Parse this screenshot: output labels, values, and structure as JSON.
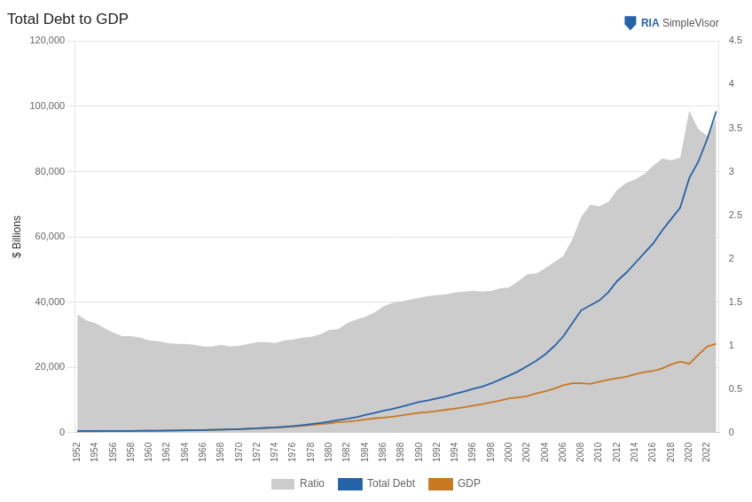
{
  "chart_data": {
    "type": "line",
    "title": "Total Debt to GDP",
    "ylabel": "$ Billions",
    "x": [
      1952,
      1953,
      1954,
      1955,
      1956,
      1957,
      1958,
      1959,
      1960,
      1961,
      1962,
      1963,
      1964,
      1965,
      1966,
      1967,
      1968,
      1969,
      1970,
      1971,
      1972,
      1973,
      1974,
      1975,
      1976,
      1977,
      1978,
      1979,
      1980,
      1981,
      1982,
      1983,
      1984,
      1985,
      1986,
      1987,
      1988,
      1989,
      1990,
      1991,
      1992,
      1993,
      1994,
      1995,
      1996,
      1997,
      1998,
      1999,
      2000,
      2001,
      2002,
      2003,
      2004,
      2005,
      2006,
      2007,
      2008,
      2009,
      2010,
      2011,
      2012,
      2013,
      2014,
      2015,
      2016,
      2017,
      2018,
      2019,
      2020,
      2021,
      2022,
      2023
    ],
    "series": [
      {
        "name": "Ratio",
        "type": "area",
        "color": "#cccccc",
        "axis": "y2",
        "values": [
          1.36,
          1.29,
          1.26,
          1.2,
          1.15,
          1.11,
          1.11,
          1.09,
          1.06,
          1.05,
          1.03,
          1.02,
          1.02,
          1.01,
          0.99,
          0.99,
          1.01,
          0.99,
          1.0,
          1.02,
          1.04,
          1.04,
          1.03,
          1.06,
          1.07,
          1.09,
          1.1,
          1.13,
          1.18,
          1.19,
          1.26,
          1.3,
          1.33,
          1.38,
          1.45,
          1.49,
          1.51,
          1.53,
          1.55,
          1.57,
          1.58,
          1.59,
          1.61,
          1.62,
          1.63,
          1.62,
          1.63,
          1.66,
          1.67,
          1.74,
          1.82,
          1.83,
          1.89,
          1.96,
          2.03,
          2.22,
          2.48,
          2.62,
          2.6,
          2.65,
          2.79,
          2.87,
          2.91,
          2.97,
          3.07,
          3.15,
          3.13,
          3.16,
          3.7,
          3.49,
          3.41,
          3.62
        ]
      },
      {
        "name": "Total Debt",
        "type": "line",
        "color": "#2563a8",
        "values": [
          490,
          490,
          490,
          505,
          510,
          515,
          535,
          565,
          575,
          590,
          620,
          650,
          695,
          735,
          790,
          850,
          945,
          1000,
          1080,
          1190,
          1330,
          1490,
          1620,
          1790,
          2020,
          2280,
          2600,
          2960,
          3380,
          3820,
          4220,
          4730,
          5380,
          6000,
          6680,
          7260,
          7940,
          8680,
          9400,
          9900,
          10500,
          11100,
          11900,
          12600,
          13400,
          14100,
          15100,
          16300,
          17500,
          18800,
          20400,
          22000,
          24000,
          26500,
          29500,
          33500,
          37500,
          39000,
          40500,
          43000,
          46500,
          49000,
          52000,
          55000,
          58000,
          62000,
          65500,
          69000,
          78000,
          83000,
          90000,
          98500
        ]
      },
      {
        "name": "GDP",
        "type": "line",
        "color": "#c87820",
        "values": [
          360,
          380,
          390,
          420,
          445,
          465,
          480,
          520,
          545,
          560,
          600,
          635,
          680,
          730,
          800,
          855,
          940,
          1010,
          1075,
          1165,
          1280,
          1430,
          1570,
          1690,
          1880,
          2100,
          2360,
          2630,
          2860,
          3210,
          3345,
          3635,
          4040,
          4350,
          4590,
          4870,
          5250,
          5660,
          6060,
          6290,
          6640,
          7000,
          7400,
          7800,
          8250,
          8710,
          9270,
          9820,
          10500,
          10800,
          11200,
          12000,
          12700,
          13500,
          14500,
          15100,
          15100,
          14900,
          15600,
          16200,
          16700,
          17100,
          17900,
          18500,
          18900,
          19700,
          20900,
          21800,
          21100,
          23800,
          26400,
          27200
        ]
      }
    ],
    "xlim": [
      1951.7,
      2023.3
    ],
    "xticks": [
      1952,
      1954,
      1956,
      1958,
      1960,
      1962,
      1964,
      1966,
      1968,
      1970,
      1972,
      1974,
      1976,
      1978,
      1980,
      1982,
      1984,
      1986,
      1988,
      1990,
      1992,
      1994,
      1996,
      1998,
      2000,
      2002,
      2004,
      2006,
      2008,
      2010,
      2012,
      2014,
      2016,
      2018,
      2020,
      2022
    ],
    "ylim": [
      0,
      120000
    ],
    "yticks": [
      0,
      {
        "value": 20000,
        "label": "20,000"
      },
      {
        "value": 40000,
        "label": "40,000"
      },
      {
        "value": 60000,
        "label": "60,000"
      },
      {
        "value": 80000,
        "label": "80,000"
      },
      {
        "value": 100000,
        "label": "100,000"
      },
      {
        "value": 120000,
        "label": "120,000"
      }
    ],
    "y2lim": [
      0,
      4.5
    ],
    "y2ticks": [
      0,
      0.5,
      1,
      1.5,
      2,
      2.5,
      3,
      3.5,
      4,
      4.5
    ],
    "grid": "y",
    "legend": "bottom",
    "annotations": [
      {
        "text": "RIA",
        "color": "#2563a8"
      },
      {
        "text": " SimpleVisor",
        "color": "#555555"
      }
    ]
  }
}
